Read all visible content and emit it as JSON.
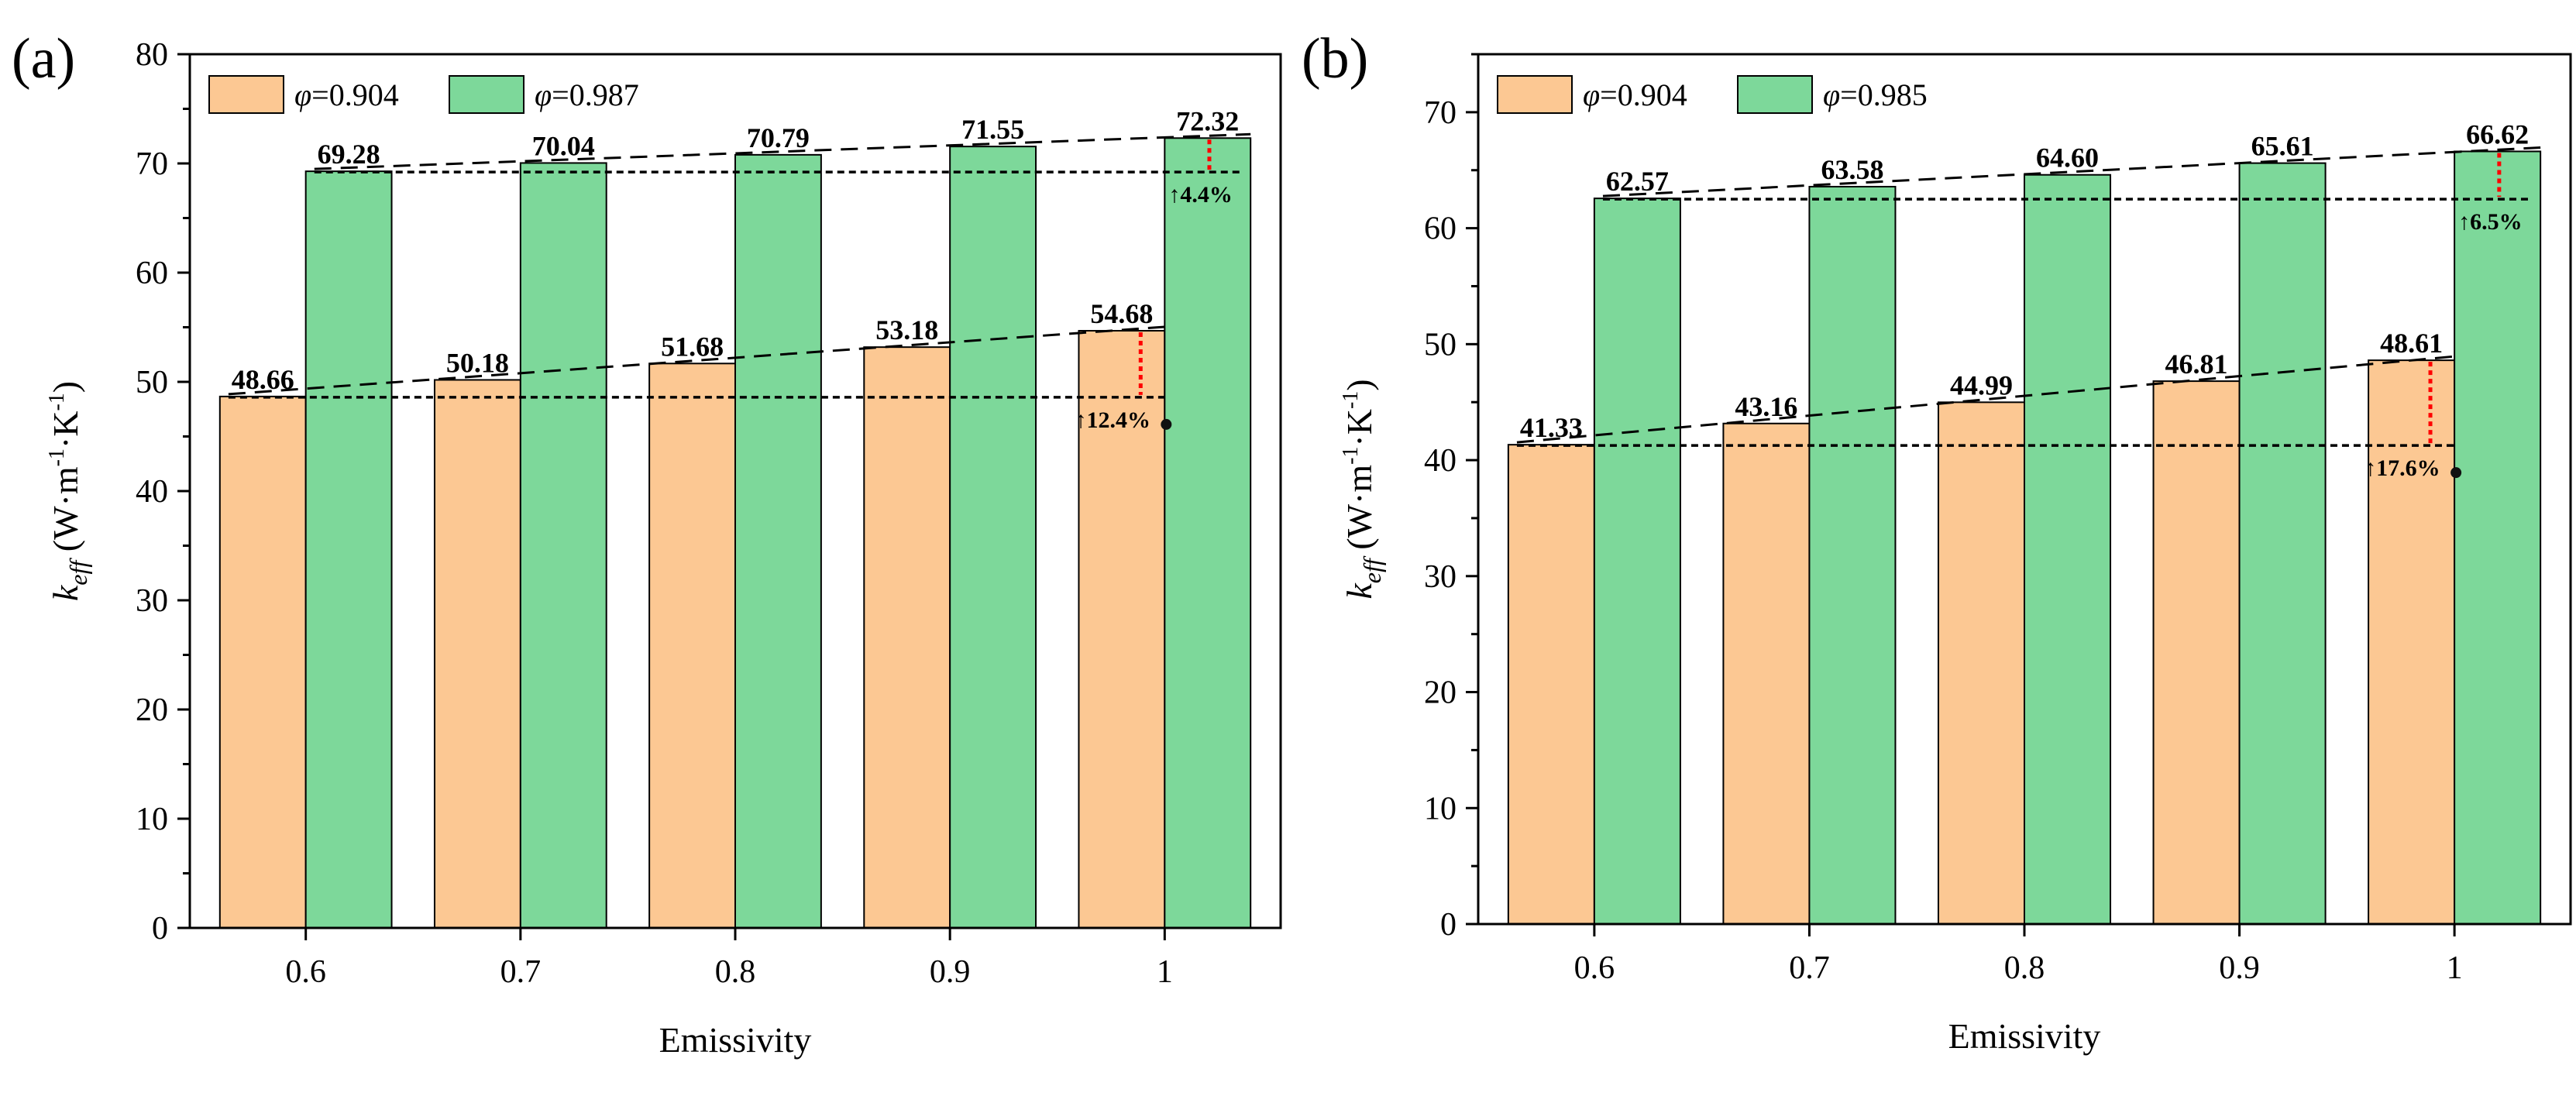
{
  "chart_data": [
    {
      "type": "bar",
      "panel_label": "(a)",
      "xlabel": "Emissivity",
      "ylabel": "k",
      "ylabel_sub": "eff",
      "ylabel_units": " (W·m",
      "ylabel_exp1": "-1",
      "ylabel_mid": "·K",
      "ylabel_exp2": "-1",
      "ylabel_close": ")",
      "categories": [
        "0.6",
        "0.7",
        "0.8",
        "0.9",
        "1"
      ],
      "ylim": [
        0,
        80
      ],
      "yticks": [
        "0",
        "10",
        "20",
        "30",
        "40",
        "50",
        "60",
        "70",
        "80"
      ],
      "series": [
        {
          "name": "φ=0.904",
          "phi_symbol": "φ",
          "phi_value": "=0.904",
          "color": "#FCC893",
          "values": [
            48.66,
            50.18,
            51.68,
            53.18,
            54.68
          ],
          "labels": [
            "48.66",
            "50.18",
            "51.68",
            "53.18",
            "54.68"
          ]
        },
        {
          "name": "φ=0.987",
          "phi_symbol": "φ",
          "phi_value": "=0.987",
          "color": "#7DD89A",
          "values": [
            69.28,
            70.04,
            70.79,
            71.55,
            72.32
          ],
          "labels": [
            "69.28",
            "70.04",
            "70.79",
            "71.55",
            "72.32"
          ]
        }
      ],
      "annotations": [
        {
          "series": 0,
          "text": "↑12.4%"
        },
        {
          "series": 1,
          "text": "↑4.4%"
        }
      ],
      "legend_position": "top-left"
    },
    {
      "type": "bar",
      "panel_label": "(b)",
      "xlabel": "Emissivity",
      "ylabel": "k",
      "ylabel_sub": "eff",
      "ylabel_units": " (W·m",
      "ylabel_exp1": "-1",
      "ylabel_mid": "·K",
      "ylabel_exp2": "-1",
      "ylabel_close": ")",
      "categories": [
        "0.6",
        "0.7",
        "0.8",
        "0.9",
        "1"
      ],
      "ylim": [
        0,
        75
      ],
      "yticks": [
        "0",
        "10",
        "20",
        "30",
        "40",
        "50",
        "60",
        "70"
      ],
      "series": [
        {
          "name": "φ=0.904",
          "phi_symbol": "φ",
          "phi_value": "=0.904",
          "color": "#FCC893",
          "values": [
            41.33,
            43.16,
            44.99,
            46.81,
            48.61
          ],
          "labels": [
            "41.33",
            "43.16",
            "44.99",
            "46.81",
            "48.61"
          ]
        },
        {
          "name": "φ=0.985",
          "phi_symbol": "φ",
          "phi_value": "=0.985",
          "color": "#7DD89A",
          "values": [
            62.57,
            63.58,
            64.6,
            65.61,
            66.62
          ],
          "labels": [
            "62.57",
            "63.58",
            "64.60",
            "65.61",
            "66.62"
          ]
        }
      ],
      "annotations": [
        {
          "series": 0,
          "text": "↑17.6%"
        },
        {
          "series": 1,
          "text": "↑6.5%"
        }
      ],
      "legend_position": "top-left"
    }
  ]
}
